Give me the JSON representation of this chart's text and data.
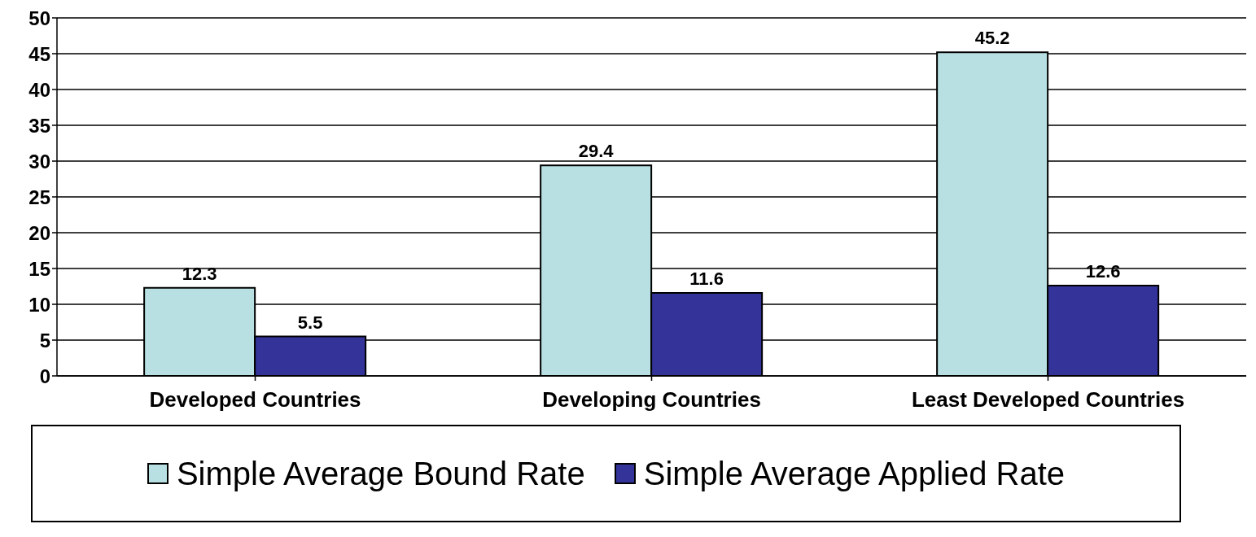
{
  "chart_data": {
    "type": "bar",
    "categories": [
      "Developed Countries",
      "Developing Countries",
      "Least Developed Countries"
    ],
    "series": [
      {
        "name": "Simple Average Bound Rate",
        "color": "#b8e0e2",
        "values": [
          12.3,
          29.4,
          45.2
        ]
      },
      {
        "name": "Simple Average Applied Rate",
        "color": "#333399",
        "values": [
          5.5,
          11.6,
          12.6
        ]
      }
    ],
    "ylim": [
      0,
      50
    ],
    "yticks": [
      0,
      5,
      10,
      15,
      20,
      25,
      30,
      35,
      40,
      45,
      50
    ],
    "grid": "y",
    "legend": "bottom",
    "data_labels": true
  }
}
